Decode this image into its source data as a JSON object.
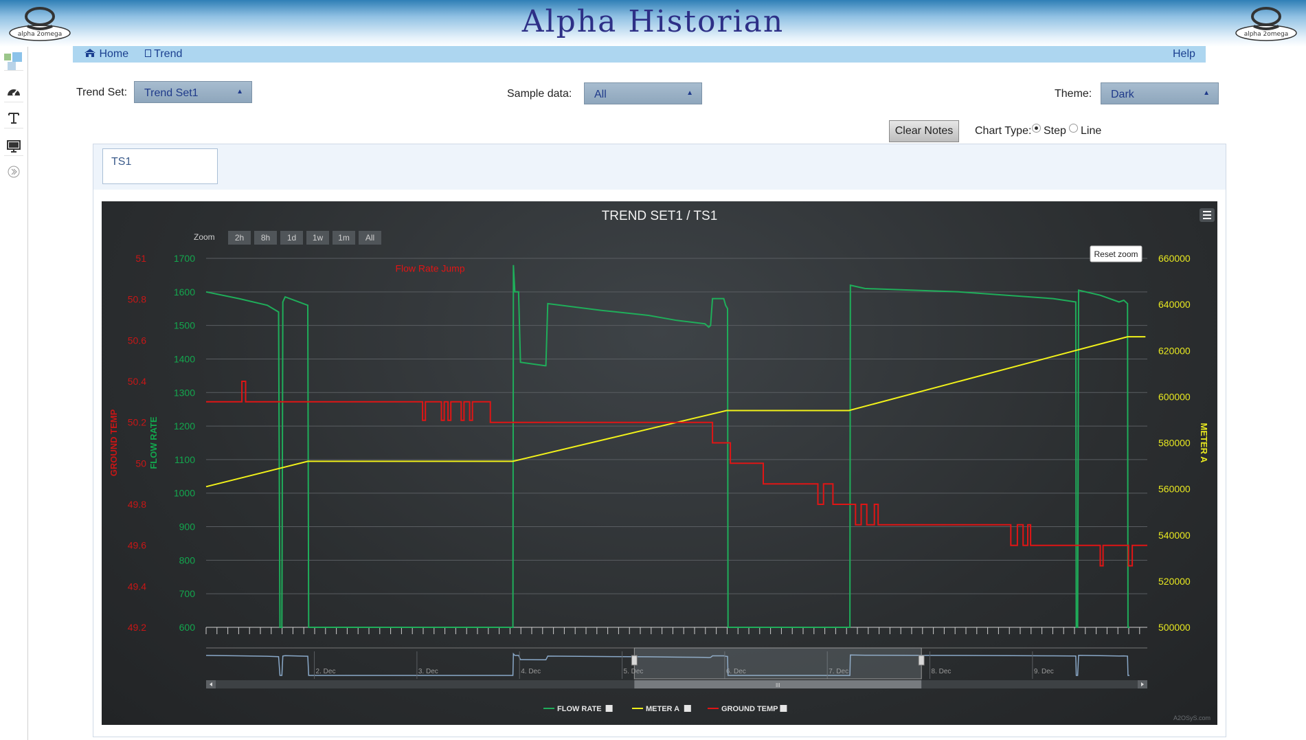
{
  "app": {
    "title": "Alpha Historian",
    "logo_text": "alpha 2omega"
  },
  "nav": {
    "home": "Home",
    "trend": "Trend",
    "help": "Help"
  },
  "controls": {
    "trend_set_label": "Trend Set:",
    "trend_set_value": "Trend Set1",
    "sample_label": "Sample data:",
    "sample_value": "All",
    "theme_label": "Theme:",
    "theme_value": "Dark",
    "clear_notes": "Clear Notes",
    "chart_type_label": "Chart Type:",
    "chart_type_step": "Step",
    "chart_type_line": "Line",
    "chart_type_selected": "Step"
  },
  "tabs": [
    {
      "label": "TS1"
    }
  ],
  "chart_ui": {
    "zoom_label": "Zoom",
    "zoom_buttons": [
      "2h",
      "8h",
      "1d",
      "1w",
      "1m",
      "All"
    ],
    "reset_zoom": "Reset zoom",
    "credit": "A2OSyS.com"
  },
  "colors": {
    "flow": "#1fae5a",
    "meter": "#f2f21a",
    "ground": "#e01515",
    "flow_axis": "#13a74e",
    "meter_axis": "#e8e820",
    "ground_axis": "#c91616"
  },
  "chart_data": {
    "type": "line",
    "title": "TREND SET1 / TS1",
    "x_unit": "time",
    "x_range": [
      0,
      100
    ],
    "annotations": [
      {
        "text": "Flow Rate Jump",
        "x": 23.8,
        "y": 1670,
        "axis": "flow"
      }
    ],
    "axes": {
      "flow": {
        "label": "FLOW RATE",
        "min": 600,
        "max": 1700,
        "ticks": [
          600,
          700,
          800,
          900,
          1000,
          1100,
          1200,
          1300,
          1400,
          1500,
          1600,
          1700
        ]
      },
      "ground": {
        "label": "GROUND TEMP",
        "min": 49.2,
        "max": 51,
        "ticks": [
          "49.2",
          "49.4",
          "49.6",
          "49.8",
          "50",
          "50.2",
          "50.4",
          "50.6",
          "50.8",
          "51"
        ]
      },
      "meter": {
        "label": "METER A",
        "min": 500000,
        "max": 660000,
        "ticks": [
          500000,
          520000,
          540000,
          560000,
          580000,
          600000,
          620000,
          640000,
          660000
        ]
      }
    },
    "legend": [
      "FLOW RATE",
      "METER A",
      "GROUND TEMP"
    ],
    "series": [
      {
        "name": "FLOW RATE",
        "axis": "flow",
        "points": [
          [
            0,
            1600
          ],
          [
            3.5,
            1580
          ],
          [
            6.5,
            1560
          ],
          [
            7.7,
            1540
          ],
          [
            7.85,
            600
          ],
          [
            8.05,
            600
          ],
          [
            8.15,
            1570
          ],
          [
            8.4,
            1585
          ],
          [
            10.8,
            1560
          ],
          [
            10.9,
            600
          ],
          [
            10.95,
            600
          ],
          [
            32.6,
            600
          ],
          [
            32.65,
            1680
          ],
          [
            32.8,
            1600
          ],
          [
            33.2,
            1600
          ],
          [
            33.4,
            1390
          ],
          [
            36.0,
            1380
          ],
          [
            36.1,
            1380
          ],
          [
            36.3,
            1565
          ],
          [
            42,
            1545
          ],
          [
            47,
            1530
          ],
          [
            50,
            1515
          ],
          [
            53,
            1505
          ],
          [
            53.4,
            1495
          ],
          [
            53.6,
            1500
          ],
          [
            53.8,
            1580
          ],
          [
            55.0,
            1580
          ],
          [
            55.2,
            1560
          ],
          [
            55.4,
            1550
          ],
          [
            55.45,
            600
          ],
          [
            68.4,
            600
          ],
          [
            68.45,
            1620
          ],
          [
            70,
            1610
          ],
          [
            80,
            1600
          ],
          [
            90,
            1580
          ],
          [
            92.4,
            1570
          ],
          [
            92.45,
            600
          ],
          [
            92.6,
            600
          ],
          [
            92.7,
            1605
          ],
          [
            95,
            1590
          ],
          [
            97,
            1570
          ],
          [
            97.5,
            1575
          ],
          [
            97.9,
            1565
          ],
          [
            97.95,
            600
          ],
          [
            98.1,
            600
          ]
        ]
      },
      {
        "name": "METER A",
        "axis": "meter",
        "points": [
          [
            0,
            561000
          ],
          [
            10.8,
            572000
          ],
          [
            32.6,
            572000
          ],
          [
            55.3,
            594000
          ],
          [
            68.3,
            594000
          ],
          [
            97.9,
            626000
          ],
          [
            99.8,
            626000
          ]
        ]
      },
      {
        "name": "GROUND TEMP",
        "axis": "ground",
        "points": [
          [
            0,
            50.3
          ],
          [
            3.8,
            50.3
          ],
          [
            3.8,
            50.4
          ],
          [
            4.2,
            50.4
          ],
          [
            4.2,
            50.3
          ],
          [
            23.0,
            50.3
          ],
          [
            23.0,
            50.21
          ],
          [
            23.3,
            50.21
          ],
          [
            23.3,
            50.3
          ],
          [
            25.0,
            50.3
          ],
          [
            25.0,
            50.21
          ],
          [
            25.3,
            50.21
          ],
          [
            25.3,
            50.3
          ],
          [
            25.7,
            50.3
          ],
          [
            25.7,
            50.21
          ],
          [
            26.0,
            50.21
          ],
          [
            26.0,
            50.3
          ],
          [
            27.1,
            50.3
          ],
          [
            27.1,
            50.21
          ],
          [
            27.4,
            50.21
          ],
          [
            27.4,
            50.3
          ],
          [
            28.0,
            50.3
          ],
          [
            28.0,
            50.21
          ],
          [
            28.3,
            50.21
          ],
          [
            28.3,
            50.3
          ],
          [
            30.2,
            50.3
          ],
          [
            30.2,
            50.2
          ],
          [
            53.8,
            50.2
          ],
          [
            53.8,
            50.1
          ],
          [
            55.7,
            50.1
          ],
          [
            55.7,
            50.0
          ],
          [
            59.2,
            50.0
          ],
          [
            59.2,
            49.9
          ],
          [
            65.0,
            49.9
          ],
          [
            65.0,
            49.8
          ],
          [
            65.6,
            49.8
          ],
          [
            65.6,
            49.9
          ],
          [
            66.6,
            49.9
          ],
          [
            66.6,
            49.8
          ],
          [
            69.0,
            49.8
          ],
          [
            69.0,
            49.7
          ],
          [
            69.6,
            49.7
          ],
          [
            69.6,
            49.8
          ],
          [
            70.2,
            49.8
          ],
          [
            70.2,
            49.7
          ],
          [
            71.0,
            49.7
          ],
          [
            71.0,
            49.8
          ],
          [
            71.4,
            49.8
          ],
          [
            71.4,
            49.7
          ],
          [
            85.5,
            49.7
          ],
          [
            85.5,
            49.6
          ],
          [
            86.2,
            49.6
          ],
          [
            86.2,
            49.7
          ],
          [
            86.8,
            49.7
          ],
          [
            86.8,
            49.6
          ],
          [
            87.3,
            49.6
          ],
          [
            87.3,
            49.7
          ],
          [
            87.6,
            49.7
          ],
          [
            87.6,
            49.6
          ],
          [
            95.0,
            49.6
          ],
          [
            95.0,
            49.5
          ],
          [
            95.3,
            49.5
          ],
          [
            95.3,
            49.6
          ],
          [
            98.0,
            49.6
          ],
          [
            98.0,
            49.5
          ],
          [
            98.4,
            49.5
          ],
          [
            98.4,
            49.6
          ],
          [
            100,
            49.6
          ]
        ]
      }
    ],
    "navigator": {
      "date_labels": [
        "2. Dec",
        "3. Dec",
        "4. Dec",
        "5. Dec",
        "6. Dec",
        "7. Dec",
        "8. Dec",
        "9. Dec"
      ],
      "selection": [
        45.5,
        76.0
      ]
    }
  }
}
